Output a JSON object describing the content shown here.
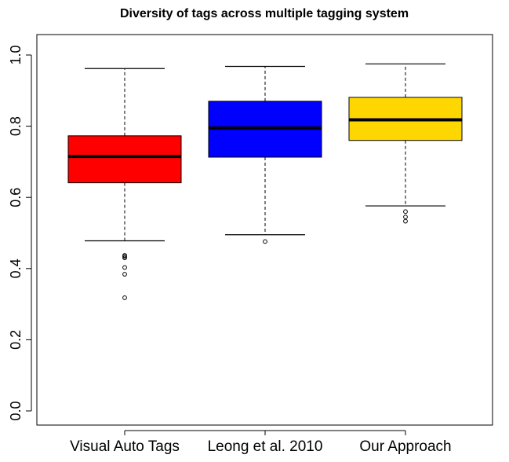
{
  "chart_data": {
    "type": "box",
    "title": "Diversity of tags across multiple tagging system",
    "xlabel": "",
    "ylabel": "",
    "ylim": [
      0.0,
      1.0
    ],
    "yticks": [
      "0.0",
      "0.2",
      "0.4",
      "0.6",
      "0.8",
      "1.0"
    ],
    "grid": false,
    "categories": [
      "Visual Auto Tags",
      "Leong et al. 2010",
      "Our Approach"
    ],
    "boxes": [
      {
        "category": "Visual Auto Tags",
        "color": "#ff0000",
        "whisker_low": 0.478,
        "q1": 0.641,
        "median": 0.715,
        "q3": 0.773,
        "whisker_high": 0.962,
        "outliers": [
          0.437,
          0.434,
          0.43,
          0.403,
          0.384,
          0.318
        ]
      },
      {
        "category": "Leong et al. 2010",
        "color": "#0000ff",
        "whisker_low": 0.495,
        "q1": 0.713,
        "median": 0.795,
        "q3": 0.87,
        "whisker_high": 0.968,
        "outliers": [
          0.476
        ]
      },
      {
        "category": "Our Approach",
        "color": "#ffd700",
        "whisker_low": 0.576,
        "q1": 0.76,
        "median": 0.818,
        "q3": 0.881,
        "whisker_high": 0.975,
        "outliers": [
          0.56,
          0.545,
          0.533
        ]
      }
    ]
  }
}
